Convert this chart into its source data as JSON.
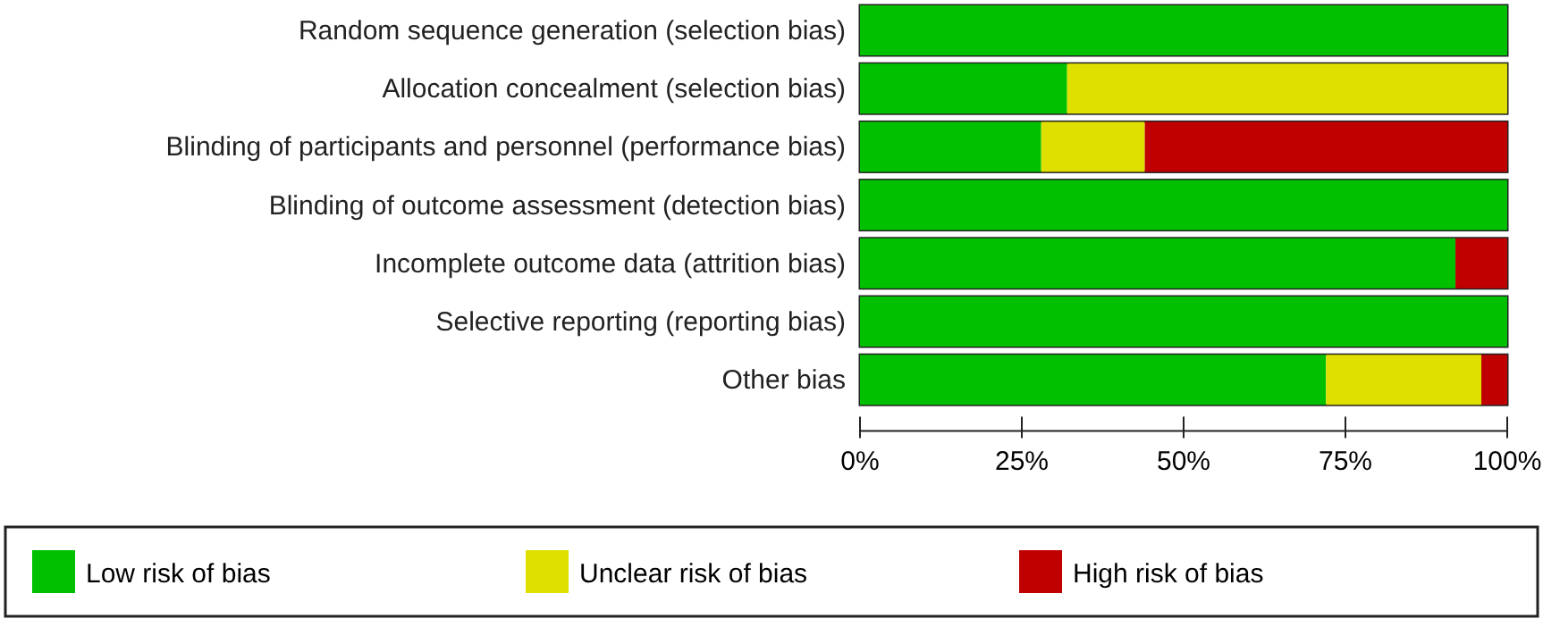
{
  "chart_data": {
    "type": "bar",
    "orientation": "horizontal",
    "stacked": true,
    "categories": [
      "Random sequence generation (selection bias)",
      "Allocation concealment (selection bias)",
      "Blinding of participants and personnel (performance bias)",
      "Blinding of outcome assessment (detection bias)",
      "Incomplete outcome data (attrition bias)",
      "Selective reporting (reporting bias)",
      "Other bias"
    ],
    "series": [
      {
        "name": "Low risk of bias",
        "color": "#00c000",
        "values": [
          100,
          32,
          28,
          100,
          92,
          100,
          72
        ]
      },
      {
        "name": "Unclear risk of bias",
        "color": "#e0e000",
        "values": [
          0,
          68,
          16,
          0,
          0,
          0,
          24
        ]
      },
      {
        "name": "High risk of bias",
        "color": "#c00000",
        "values": [
          0,
          0,
          56,
          0,
          8,
          0,
          4
        ]
      }
    ],
    "xlim": [
      0,
      100
    ],
    "xticks": [
      {
        "value": 0,
        "label": "0%"
      },
      {
        "value": 25,
        "label": "25%"
      },
      {
        "value": 50,
        "label": "50%"
      },
      {
        "value": 75,
        "label": "75%"
      },
      {
        "value": 100,
        "label": "100%"
      }
    ],
    "grid": false,
    "legend": "bottom"
  }
}
